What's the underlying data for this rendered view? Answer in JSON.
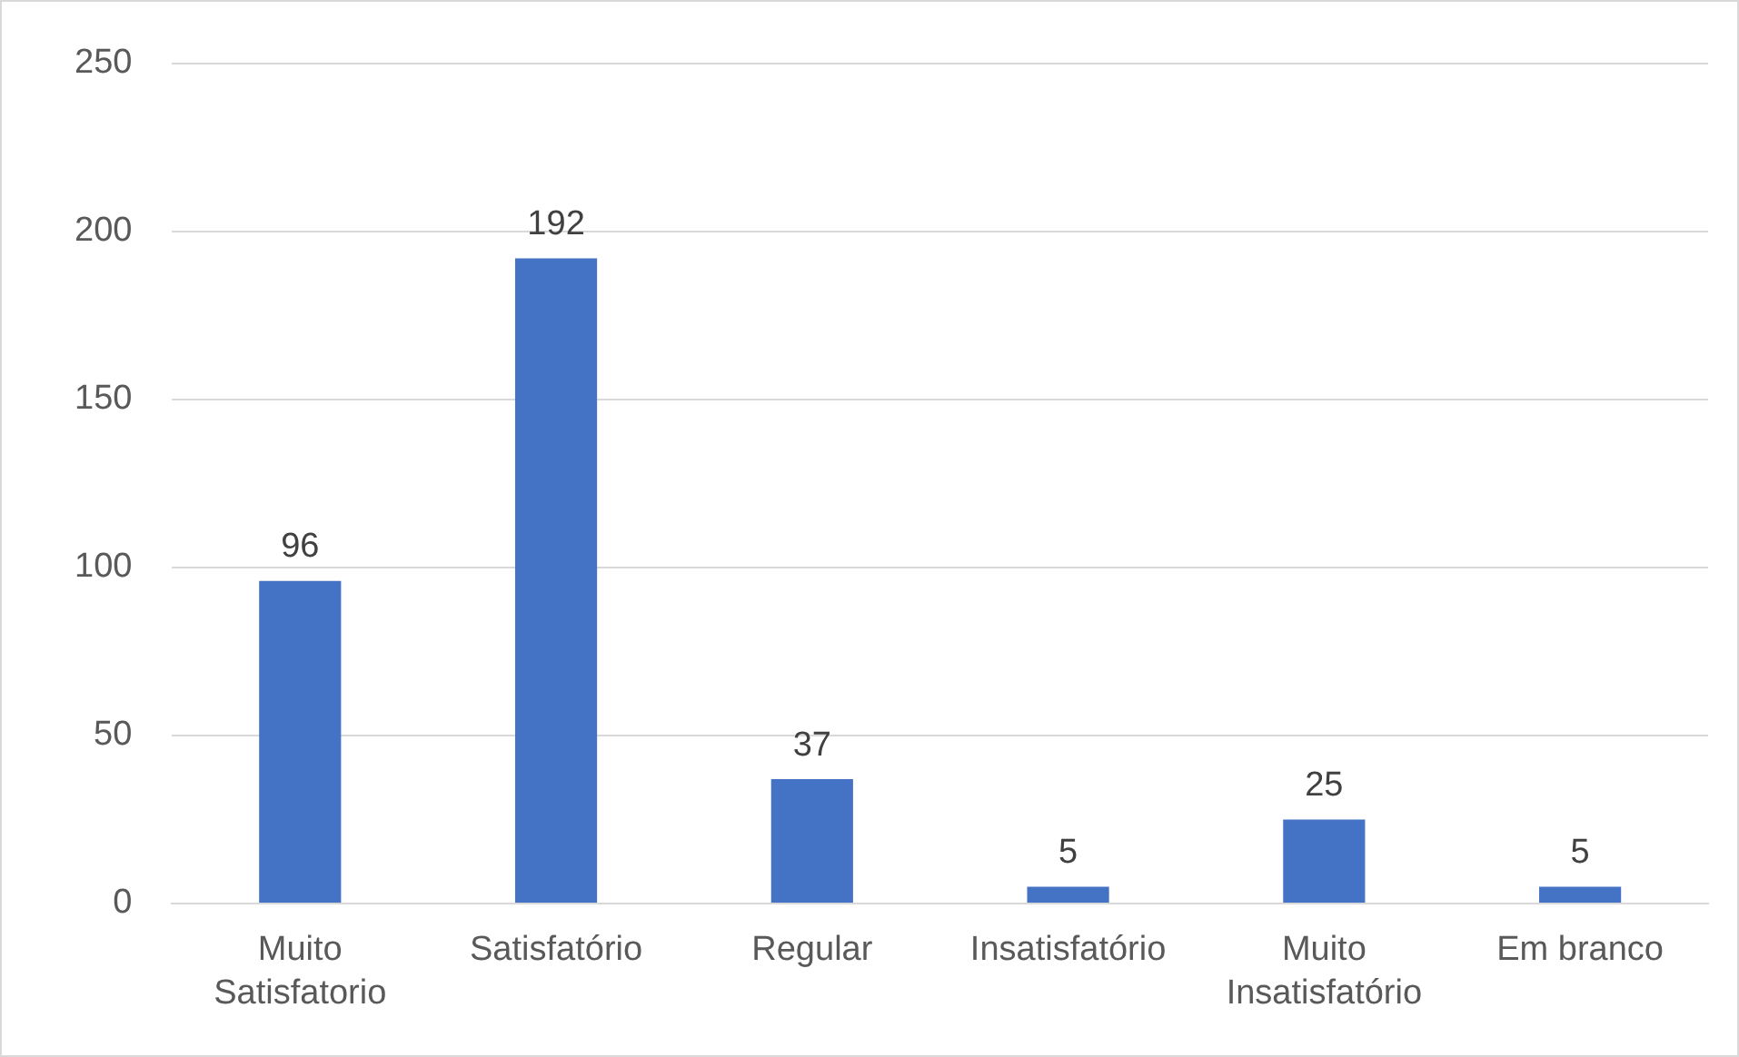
{
  "chart_data": {
    "type": "bar",
    "categories": [
      "Muito Satisfatorio",
      "Satisfatório",
      "Regular",
      "Insatisfatório",
      "Muito Insatisfatório",
      "Em branco"
    ],
    "values": [
      96,
      192,
      37,
      5,
      25,
      5
    ],
    "color": "#4472c4",
    "ylim": [
      0,
      250
    ],
    "yticks": [
      0,
      50,
      100,
      150,
      200,
      250
    ],
    "grid": "y",
    "data_labels": true,
    "legend": false
  }
}
